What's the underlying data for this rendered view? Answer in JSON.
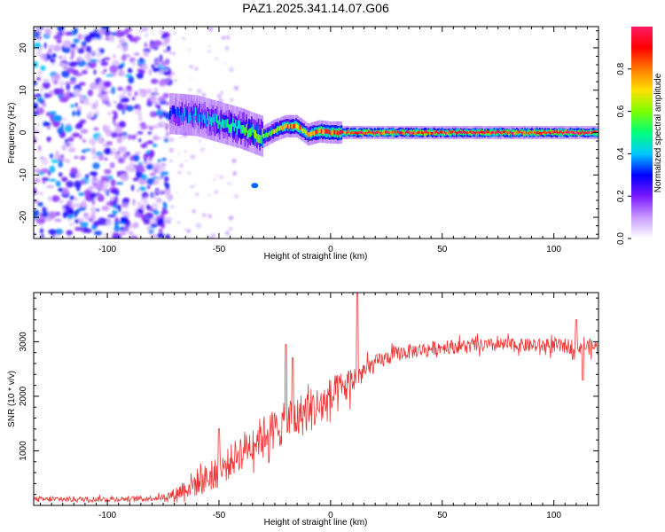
{
  "title": "PAZ1.2025.341.14.07.G06",
  "chart_data": [
    {
      "type": "heatmap",
      "xlabel": "Height of straight line (km)",
      "ylabel": "Frequency (Hz)",
      "xlim": [
        -133,
        120
      ],
      "ylim": [
        -25,
        25
      ],
      "xticks": [
        -100,
        -50,
        0,
        50,
        100
      ],
      "yticks": [
        -20,
        -10,
        0,
        10,
        20
      ],
      "colorbar": {
        "label": "Normalized spectral amplitude",
        "range": [
          0,
          1
        ],
        "ticks": [
          0.0,
          0.2,
          0.4,
          0.6,
          0.8
        ],
        "tick_labels": [
          "0.0",
          "0.2",
          "0.4",
          "0.6",
          "0.8"
        ],
        "colors": [
          "#ffffff",
          "#c99bff",
          "#7a17ff",
          "#0000ff",
          "#00c8ff",
          "#00ff7a",
          "#7cff00",
          "#ffe000",
          "#ff7a00",
          "#ff0000",
          "#ff1a66"
        ]
      },
      "features": [
        {
          "label": "noise",
          "x_range": [
            -133,
            -72
          ],
          "freq_range": [
            -25,
            25
          ],
          "amplitude": 0.15
        },
        {
          "label": "signal band",
          "x": [
            -72,
            -60,
            -50,
            -40,
            -35,
            -30,
            -25,
            -20,
            -15,
            -10,
            -5,
            0,
            10,
            20,
            50,
            80,
            120
          ],
          "freq": [
            4.5,
            4,
            2.5,
            1,
            0,
            -1,
            0.5,
            1.5,
            1.5,
            -0.5,
            0.3,
            0,
            0,
            0,
            0,
            0,
            0
          ],
          "amplitude": [
            0.3,
            0.4,
            0.45,
            0.5,
            0.55,
            0.6,
            0.65,
            0.75,
            0.8,
            0.7,
            0.85,
            0.9,
            0.92,
            0.95,
            0.95,
            0.95,
            0.95
          ]
        },
        {
          "label": "spot",
          "x": -34,
          "freq": -12.5,
          "amplitude": 0.35
        }
      ]
    },
    {
      "type": "line",
      "xlabel": "Height of straight line (km)",
      "ylabel": "SNR (10 * v/v)",
      "xlim": [
        -133,
        120
      ],
      "ylim": [
        0,
        3900
      ],
      "xticks": [
        -100,
        -50,
        0,
        50,
        100
      ],
      "yticks": [
        1000,
        2000,
        3000
      ],
      "color": "#ee3333",
      "series": [
        {
          "name": "SNR",
          "x": [
            -133,
            -120,
            -110,
            -100,
            -90,
            -80,
            -75,
            -70,
            -65,
            -60,
            -55,
            -50,
            -45,
            -40,
            -35,
            -30,
            -25,
            -20,
            -15,
            -10,
            -5,
            0,
            5,
            10,
            15,
            20,
            25,
            30,
            40,
            50,
            60,
            70,
            80,
            90,
            100,
            110,
            120
          ],
          "y": [
            110,
            110,
            115,
            115,
            120,
            130,
            150,
            200,
            320,
            420,
            500,
            600,
            800,
            1000,
            1150,
            1300,
            1400,
            1500,
            1600,
            1750,
            1800,
            1950,
            2100,
            2300,
            2450,
            2600,
            2700,
            2780,
            2850,
            2900,
            2920,
            2930,
            2940,
            2930,
            2920,
            2920,
            2900
          ],
          "noise": [
            60,
            60,
            60,
            60,
            60,
            60,
            70,
            150,
            260,
            330,
            340,
            350,
            380,
            420,
            420,
            450,
            480,
            500,
            500,
            520,
            500,
            500,
            450,
            350,
            250,
            200,
            180,
            180,
            170,
            160,
            160,
            160,
            160,
            160,
            170,
            180,
            180
          ]
        }
      ],
      "spikes": [
        {
          "x": -50,
          "y": 1400
        },
        {
          "x": -20,
          "y": 2950
        },
        {
          "x": -17,
          "y": 2700
        },
        {
          "x": 12,
          "y": 3880
        },
        {
          "x": 110,
          "y": 3400
        },
        {
          "x": 113,
          "y": 2300
        }
      ]
    }
  ]
}
